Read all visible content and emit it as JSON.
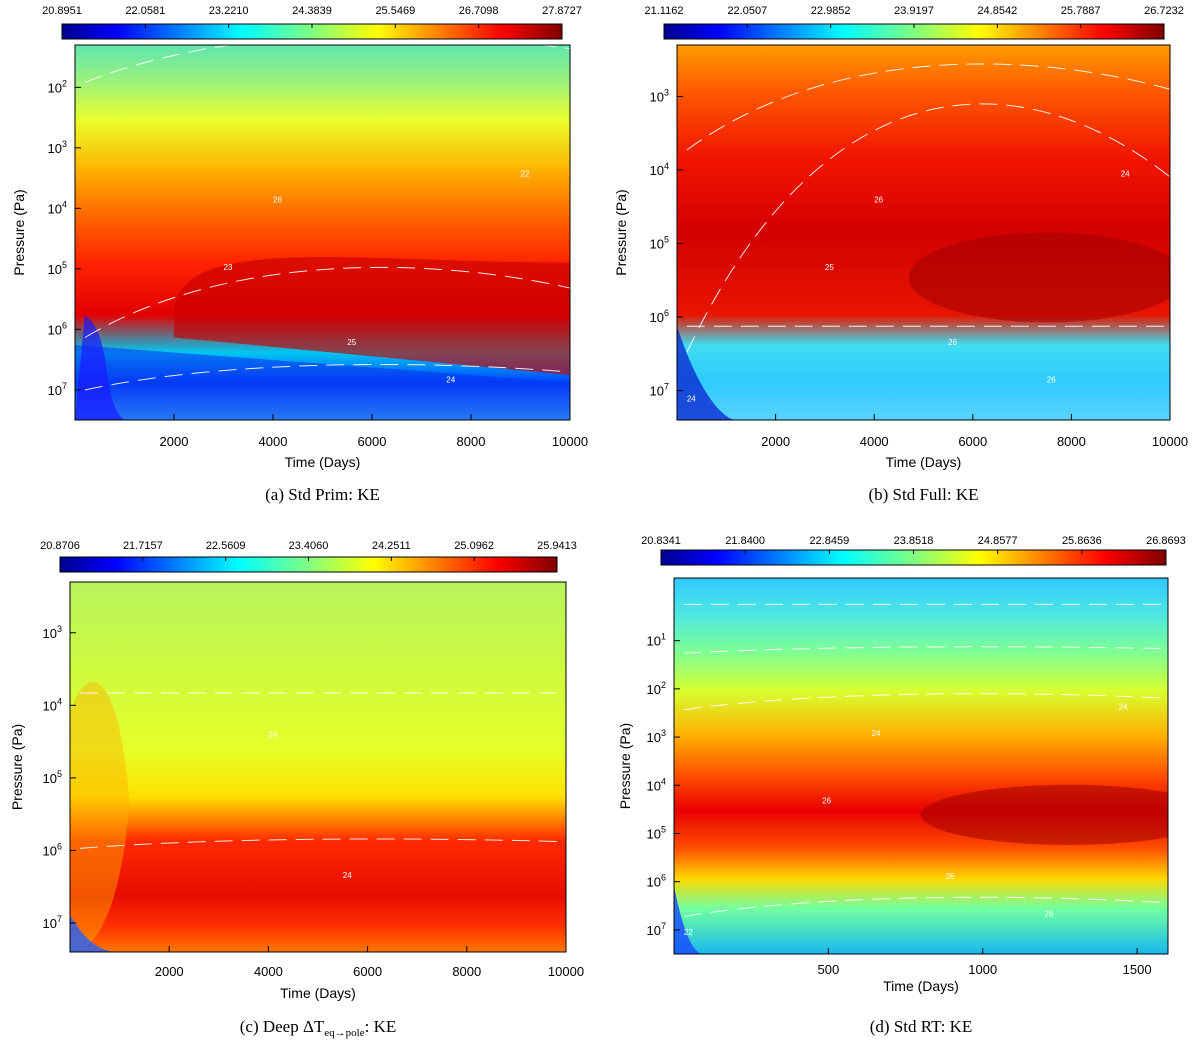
{
  "chart_data": [
    {
      "type": "heatmap",
      "panel": "a",
      "caption": "(a) Std Prim: KE",
      "xlabel": "Time (Days)",
      "ylabel": "Pressure (Pa)",
      "xlim": [
        0,
        10000
      ],
      "ylim_log10_pa": [
        1.3,
        7.5
      ],
      "x_ticks": [
        2000,
        4000,
        6000,
        8000,
        10000
      ],
      "y_tick_exponents": [
        2,
        3,
        4,
        5,
        6,
        7
      ],
      "colorbar": {
        "min": 20.8951,
        "max": 27.8727,
        "tick_labels": [
          "20.8951",
          "22.0581",
          "23.2210",
          "24.3839",
          "25.5469",
          "26.7098",
          "27.8727"
        ]
      },
      "contour_labels": [
        "26",
        "25",
        "24",
        "23",
        "22"
      ]
    },
    {
      "type": "heatmap",
      "panel": "b",
      "caption": "(b) Std Full: KE",
      "xlabel": "Time (Days)",
      "ylabel": "Pressure (Pa)",
      "xlim": [
        0,
        10000
      ],
      "ylim_log10_pa": [
        2.3,
        7.4
      ],
      "x_ticks": [
        2000,
        4000,
        6000,
        8000,
        10000
      ],
      "y_tick_exponents": [
        3,
        4,
        5,
        6,
        7
      ],
      "colorbar": {
        "min": 21.1162,
        "max": 26.7232,
        "tick_labels": [
          "21.1162",
          "22.0507",
          "22.9852",
          "23.9197",
          "24.8542",
          "25.7887",
          "26.7232"
        ]
      },
      "contour_labels": [
        "26",
        "26",
        "26",
        "25",
        "24",
        "24"
      ]
    },
    {
      "type": "heatmap",
      "panel": "c",
      "caption": "(c) Deep ΔT_eq→pole: KE",
      "caption_main": "(c) Deep ΔT",
      "caption_sub": "eq→pole",
      "caption_tail": ": KE",
      "xlabel": "Time (Days)",
      "ylabel": "Pressure (Pa)",
      "xlim": [
        0,
        10000
      ],
      "ylim_log10_pa": [
        2.3,
        7.4
      ],
      "x_ticks": [
        2000,
        4000,
        6000,
        8000,
        10000
      ],
      "y_tick_exponents": [
        3,
        4,
        5,
        6,
        7
      ],
      "colorbar": {
        "min": 20.8706,
        "max": 25.9413,
        "tick_labels": [
          "20.8706",
          "21.7157",
          "22.5609",
          "23.4060",
          "24.2511",
          "25.0962",
          "25.9413"
        ]
      },
      "contour_labels": [
        "24",
        "24"
      ]
    },
    {
      "type": "heatmap",
      "panel": "d",
      "caption": "(d) Std RT: KE",
      "xlabel": "Time (Days)",
      "ylabel": "Pressure (Pa)",
      "xlim": [
        0,
        1600
      ],
      "ylim_log10_pa": [
        -0.3,
        7.5
      ],
      "x_ticks": [
        500,
        1000,
        1500
      ],
      "y_tick_exponents": [
        1,
        2,
        3,
        4,
        5,
        6,
        7
      ],
      "colorbar": {
        "min": 20.8341,
        "max": 26.8693,
        "tick_labels": [
          "20.8341",
          "21.8400",
          "22.8459",
          "23.8518",
          "24.8577",
          "25.8636",
          "26.8693"
        ]
      },
      "contour_labels": [
        "24",
        "26",
        "26",
        "26",
        "24",
        "22"
      ]
    }
  ]
}
